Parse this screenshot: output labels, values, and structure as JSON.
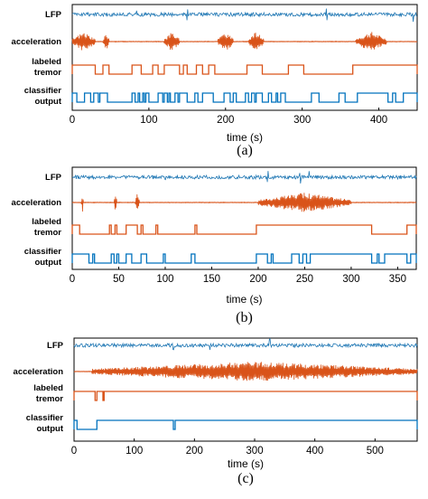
{
  "colors": {
    "lfp": "#1f77b4",
    "accel": "#d95319",
    "tremor": "#d95319",
    "classifier": "#0072bd",
    "axis": "#000000"
  },
  "chart_data": [
    {
      "type": "line",
      "panel_caption": "(a)",
      "xlabel": "time (s)",
      "xlim": [
        0,
        450
      ],
      "xticks": [
        0,
        100,
        200,
        300,
        400
      ],
      "trace_labels": {
        "lfp": "LFP",
        "acceleration": "acceleration",
        "labeled_tremor": [
          "labeled",
          "tremor"
        ],
        "classifier_output": [
          "classifier",
          "output"
        ]
      },
      "tremor_intervals_s": [
        [
          0,
          30
        ],
        [
          40,
          48
        ],
        [
          78,
          90
        ],
        [
          105,
          112
        ],
        [
          120,
          140
        ],
        [
          145,
          150
        ],
        [
          162,
          170
        ],
        [
          178,
          186
        ],
        [
          228,
          248
        ],
        [
          282,
          302
        ],
        [
          366,
          450
        ]
      ],
      "classifier_intervals_s": [
        [
          0,
          6
        ],
        [
          16,
          24
        ],
        [
          28,
          34
        ],
        [
          36,
          46
        ],
        [
          78,
          82
        ],
        [
          86,
          88
        ],
        [
          92,
          94
        ],
        [
          96,
          100
        ],
        [
          112,
          118
        ],
        [
          120,
          124
        ],
        [
          126,
          128
        ],
        [
          134,
          138
        ],
        [
          140,
          150
        ],
        [
          160,
          164
        ],
        [
          170,
          184
        ],
        [
          198,
          206
        ],
        [
          210,
          214
        ],
        [
          226,
          230
        ],
        [
          234,
          238
        ],
        [
          240,
          248
        ],
        [
          256,
          260
        ],
        [
          266,
          268
        ],
        [
          272,
          278
        ],
        [
          312,
          322
        ],
        [
          348,
          356
        ],
        [
          372,
          412
        ],
        [
          418,
          422
        ],
        [
          432,
          450
        ]
      ],
      "accel_bursts_s": [
        [
          0,
          30
        ],
        [
          40,
          48
        ],
        [
          120,
          140
        ],
        [
          190,
          210
        ],
        [
          230,
          250
        ],
        [
          370,
          410
        ]
      ],
      "lfp_spikes_s": [
        84,
        150,
        332,
        444
      ]
    },
    {
      "type": "line",
      "panel_caption": "(b)",
      "xlabel": "time (s)",
      "xlim": [
        0,
        370
      ],
      "xticks": [
        0,
        50,
        100,
        150,
        200,
        250,
        300,
        350
      ],
      "trace_labels": {
        "lfp": "LFP",
        "acceleration": "acceleration",
        "labeled_tremor": [
          "labeled",
          "tremor"
        ],
        "classifier_output": [
          "classifier",
          "output"
        ]
      },
      "tremor_intervals_s": [
        [
          0,
          8
        ],
        [
          40,
          42
        ],
        [
          46,
          48
        ],
        [
          58,
          70
        ],
        [
          74,
          76
        ],
        [
          90,
          92
        ],
        [
          132,
          134
        ],
        [
          198,
          322
        ],
        [
          360,
          370
        ]
      ],
      "classifier_intervals_s": [
        [
          0,
          18
        ],
        [
          22,
          24
        ],
        [
          42,
          45
        ],
        [
          48,
          50
        ],
        [
          58,
          64
        ],
        [
          74,
          80
        ],
        [
          98,
          100
        ],
        [
          128,
          132
        ],
        [
          198,
          210
        ],
        [
          214,
          216
        ],
        [
          236,
          244
        ],
        [
          248,
          252
        ],
        [
          256,
          322
        ],
        [
          328,
          330
        ],
        [
          336,
          360
        ],
        [
          364,
          370
        ]
      ],
      "accel_bursts_s": [
        [
          10,
          12
        ],
        [
          45,
          48
        ],
        [
          68,
          72
        ],
        [
          200,
          300
        ]
      ],
      "lfp_spikes_s": [
        100,
        210,
        245,
        255
      ]
    },
    {
      "type": "line",
      "panel_caption": "(c)",
      "xlabel": "time (s)",
      "xlim": [
        0,
        570
      ],
      "xticks": [
        0,
        100,
        200,
        300,
        400,
        500
      ],
      "trace_labels": {
        "lfp": "LFP",
        "acceleration": "acceleration",
        "labeled_tremor": [
          "labeled",
          "tremor"
        ],
        "classifier_output": [
          "classifier",
          "output"
        ]
      },
      "tremor_intervals_s": [
        [
          0,
          35
        ],
        [
          38,
          48
        ],
        [
          50,
          570
        ]
      ],
      "classifier_intervals_s": [
        [
          0,
          5
        ],
        [
          38,
          165
        ],
        [
          168,
          570
        ]
      ],
      "accel_bursts_s": [
        [
          30,
          570
        ]
      ],
      "lfp_spikes_s": [
        165,
        225,
        325
      ]
    }
  ]
}
